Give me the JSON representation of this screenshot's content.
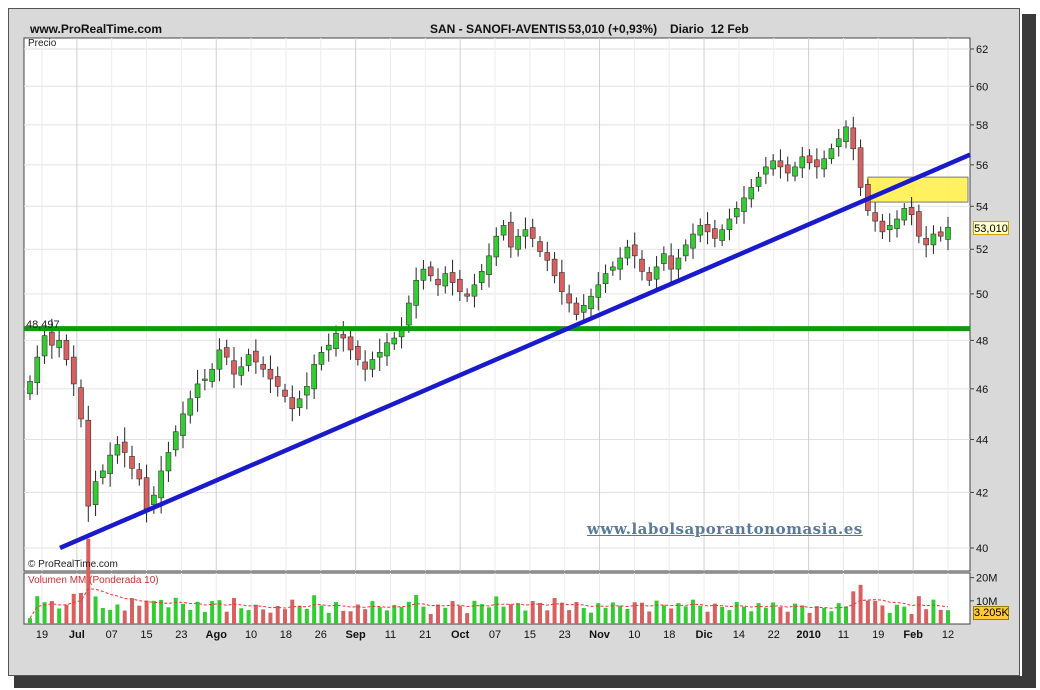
{
  "header": {
    "site": "www.ProRealTime.com",
    "title": "SAN - SANOFI-AVENTIS",
    "quote": "53,010 (+0,93%)",
    "period": "Diario  12 Feb"
  },
  "price_panel_label": "Precio",
  "copyright": "© ProRealTime.com",
  "watermark": "www.labolsaporantonomasia.es",
  "horizontal_line_label": "48,497",
  "volume_label": "Volumen MM (Ponderada 10)",
  "price_badge": "53,010",
  "volume_badge": "3.205K",
  "colors": {
    "up_candle": "#33cc33",
    "down_candle": "#d96060",
    "trendline": "#1a1acc",
    "support_line": "#119911",
    "zone_fill": "#ffee44",
    "volume_ma": "#ee3333"
  },
  "chart_data": {
    "type": "candlestick",
    "title": "SAN - SANOFI-AVENTIS",
    "y_axis": {
      "range": [
        39.2,
        62.6
      ],
      "scale": "log",
      "ticks": [
        40,
        42,
        44,
        46,
        48,
        50,
        52,
        54,
        56,
        58,
        60,
        62
      ],
      "position": "right"
    },
    "volume_axis": {
      "range": [
        0,
        22
      ],
      "ticks": [
        "10M",
        "20M"
      ]
    },
    "x_axis_labels": [
      {
        "label": "19",
        "bold": false
      },
      {
        "label": "Jul",
        "bold": true
      },
      {
        "label": "07",
        "bold": false
      },
      {
        "label": "15",
        "bold": false
      },
      {
        "label": "23",
        "bold": false
      },
      {
        "label": "Ago",
        "bold": true
      },
      {
        "label": "10",
        "bold": false
      },
      {
        "label": "18",
        "bold": false
      },
      {
        "label": "26",
        "bold": false
      },
      {
        "label": "Sep",
        "bold": true
      },
      {
        "label": "11",
        "bold": false
      },
      {
        "label": "21",
        "bold": false
      },
      {
        "label": "Oct",
        "bold": true
      },
      {
        "label": "07",
        "bold": false
      },
      {
        "label": "15",
        "bold": false
      },
      {
        "label": "23",
        "bold": false
      },
      {
        "label": "Nov",
        "bold": true
      },
      {
        "label": "10",
        "bold": false
      },
      {
        "label": "18",
        "bold": false
      },
      {
        "label": "Dic",
        "bold": true
      },
      {
        "label": "14",
        "bold": false
      },
      {
        "label": "22",
        "bold": false
      },
      {
        "label": "2010",
        "bold": true
      },
      {
        "label": "11",
        "bold": false
      },
      {
        "label": "19",
        "bold": false
      },
      {
        "label": "Feb",
        "bold": true
      },
      {
        "label": "12",
        "bold": false
      }
    ],
    "closes": [
      46.3,
      47.3,
      48.2,
      47.8,
      48.0,
      47.2,
      46.2,
      44.8,
      41.5,
      42.4,
      42.8,
      43.4,
      43.8,
      43.5,
      42.9,
      42.5,
      41.4,
      41.9,
      42.8,
      43.5,
      44.3,
      45.0,
      45.6,
      46.2,
      46.4,
      46.8,
      47.6,
      47.3,
      46.6,
      46.9,
      47.4,
      47.1,
      46.8,
      46.4,
      46.1,
      45.7,
      45.2,
      45.6,
      46.1,
      47.0,
      47.5,
      47.8,
      48.3,
      48.1,
      47.6,
      47.2,
      46.8,
      47.2,
      47.5,
      47.9,
      48.1,
      48.5,
      49.6,
      50.6,
      51.1,
      50.8,
      50.4,
      50.9,
      50.5,
      50.1,
      49.9,
      50.4,
      51.0,
      51.7,
      52.6,
      53.1,
      52.1,
      52.6,
      52.9,
      52.5,
      51.9,
      51.5,
      50.8,
      50.1,
      49.6,
      49.1,
      49.5,
      49.9,
      50.4,
      50.9,
      51.2,
      51.6,
      52.1,
      51.7,
      51.0,
      50.6,
      51.2,
      51.8,
      51.1,
      51.6,
      52.2,
      52.7,
      53.1,
      52.8,
      52.5,
      52.9,
      53.4,
      53.9,
      54.4,
      54.9,
      55.4,
      55.9,
      56.2,
      55.9,
      55.6,
      55.9,
      56.4,
      56.1,
      55.9,
      56.3,
      56.8,
      57.3,
      57.9,
      56.8,
      54.9,
      53.8,
      53.3,
      52.8,
      53.1,
      53.4,
      53.9,
      53.6,
      52.6,
      52.2,
      52.7,
      52.6,
      53.01
    ],
    "support_level": 48.497,
    "trendline": {
      "from": [
        0,
        40.0
      ],
      "to": [
        "end",
        56.5
      ]
    },
    "resistance_zone": {
      "low": 54.2,
      "high": 55.4
    },
    "volume_unit": "M"
  }
}
